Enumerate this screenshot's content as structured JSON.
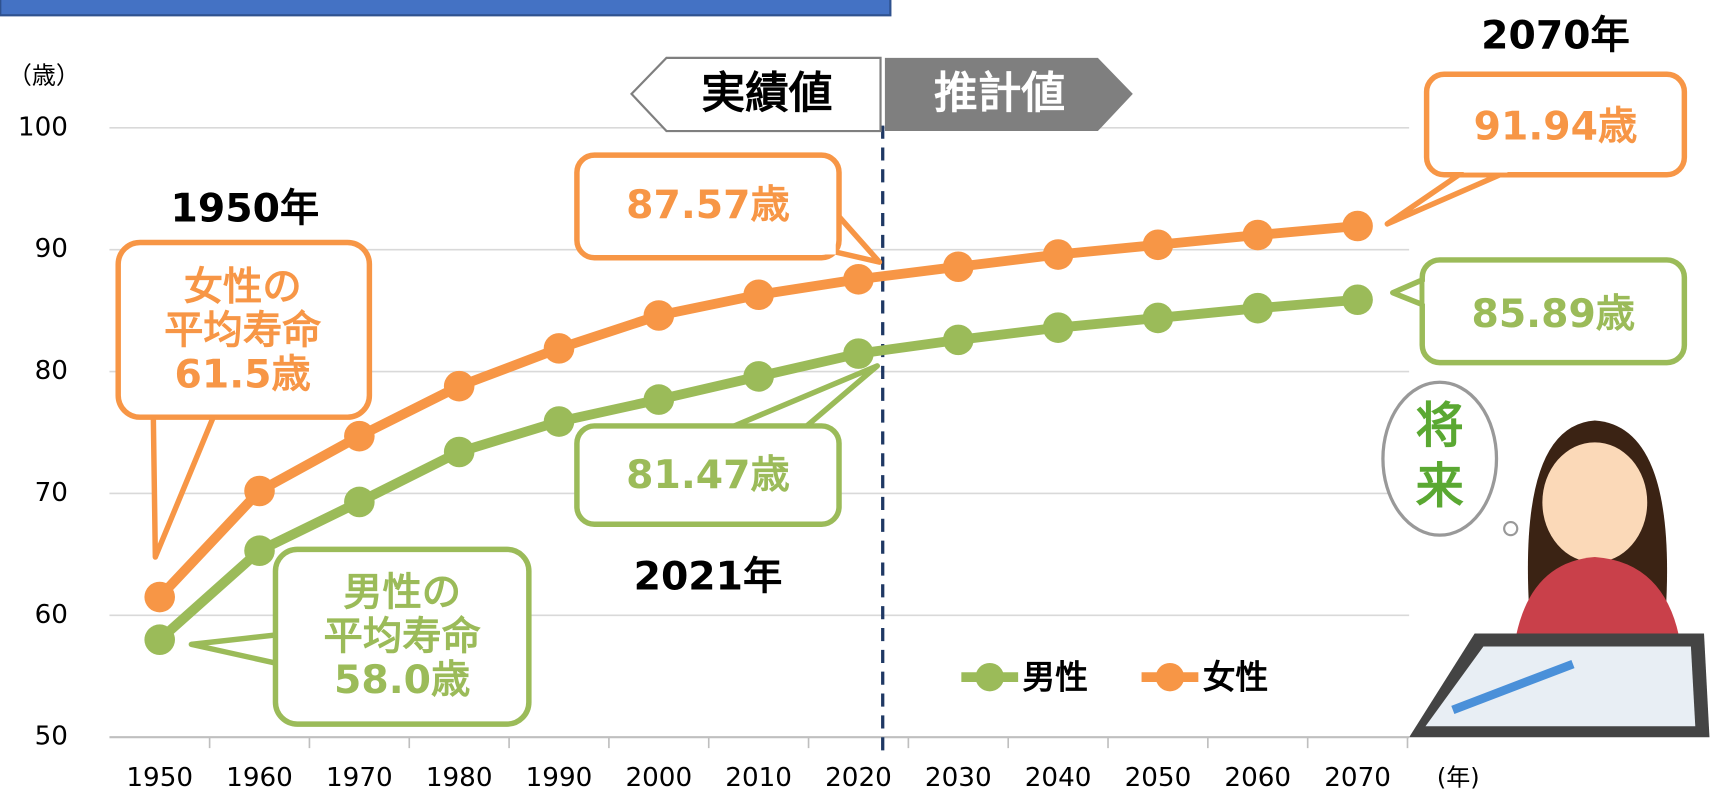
{
  "chart_data": {
    "type": "line",
    "categories": [
      "1950",
      "1960",
      "1970",
      "1980",
      "1990",
      "2000",
      "2010",
      "2020",
      "2030",
      "2040",
      "2050",
      "2060",
      "2070"
    ],
    "series": [
      {
        "name": "男性",
        "color": "#9bbb59",
        "values": [
          58.0,
          65.3,
          69.3,
          73.4,
          75.9,
          77.7,
          79.6,
          81.47,
          82.6,
          83.6,
          84.4,
          85.2,
          85.89
        ]
      },
      {
        "name": "女性",
        "color": "#f79646",
        "values": [
          61.5,
          70.2,
          74.7,
          78.8,
          81.9,
          84.6,
          86.3,
          87.57,
          88.6,
          89.6,
          90.4,
          91.2,
          91.94
        ]
      }
    ],
    "ylim": [
      50,
      100
    ],
    "yticks": [
      50,
      60,
      70,
      80,
      90,
      100
    ],
    "grid": true,
    "y_unit": "（歳）",
    "x_unit": "(年)",
    "phase_labels": {
      "actual": "実績値",
      "projected": "推計値"
    },
    "annotations": {
      "female_1950": {
        "year": "1950年",
        "lines": [
          "女性の",
          "平均寿命",
          "61.5歳"
        ]
      },
      "male_1950": {
        "lines": [
          "男性の",
          "平均寿命",
          "58.0歳"
        ]
      },
      "female_2021": "87.57歳",
      "male_2021": "81.47歳",
      "year_2021": "2021年",
      "female_2070": "91.94歳",
      "male_2070": "85.89歳",
      "year_2070": "2070年"
    },
    "illustration_text": [
      "将",
      "来"
    ]
  }
}
